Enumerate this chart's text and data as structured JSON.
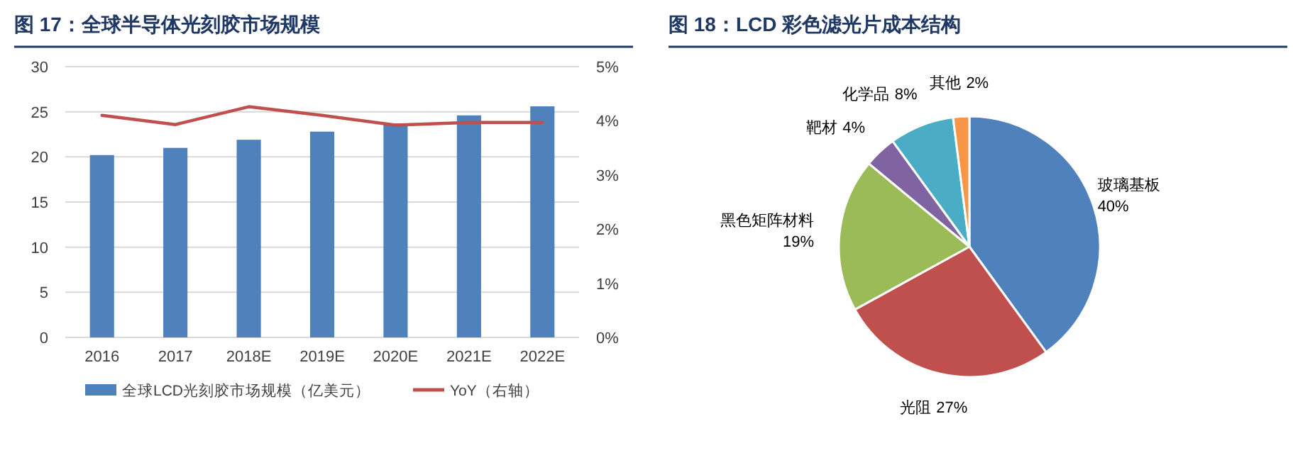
{
  "chart_data": [
    {
      "type": "bar",
      "title": "图 17：全球半导体光刻胶市场规模",
      "categories": [
        "2016",
        "2017",
        "2018E",
        "2019E",
        "2020E",
        "2021E",
        "2022E"
      ],
      "series": [
        {
          "name": "全球LCD光刻胶市场规模（亿美元）",
          "type": "bar",
          "color": "#4f81bd",
          "values": [
            20.2,
            21.0,
            21.9,
            22.8,
            23.7,
            24.6,
            25.6
          ]
        },
        {
          "name": "YoY（右轴）",
          "type": "line",
          "axis": "y2",
          "color": "#c0504d",
          "values": [
            4.1,
            3.93,
            4.26,
            4.1,
            3.92,
            3.97,
            3.97
          ]
        }
      ],
      "ylim": [
        0,
        30
      ],
      "yticks": [
        0,
        5,
        10,
        15,
        20,
        25,
        30
      ],
      "y2lim": [
        0,
        5
      ],
      "y2ticks": [
        {
          "value": 0,
          "label": "0%"
        },
        {
          "value": 1,
          "label": "1%"
        },
        {
          "value": 2,
          "label": "2%"
        },
        {
          "value": 3,
          "label": "3%"
        },
        {
          "value": 4,
          "label": "4%"
        },
        {
          "value": 5,
          "label": "5%"
        }
      ],
      "grid": "y",
      "legend": "bottom",
      "marker": "none",
      "line_style": "solid"
    },
    {
      "type": "pie",
      "title": "图 18：LCD 彩色滤光片成本结构",
      "categories": [
        "玻璃基板",
        "光阻",
        "黑色矩阵材料",
        "靶材",
        "化学品",
        "其他"
      ],
      "values": [
        40,
        27,
        19,
        4,
        8,
        2
      ],
      "colors": [
        "#4f81bd",
        "#c0504d",
        "#9bbb59",
        "#8064a2",
        "#4bacc6",
        "#f79646"
      ],
      "value_labels": [
        "40%",
        "27%",
        "19%",
        "4%",
        "8%",
        "2%"
      ]
    }
  ]
}
